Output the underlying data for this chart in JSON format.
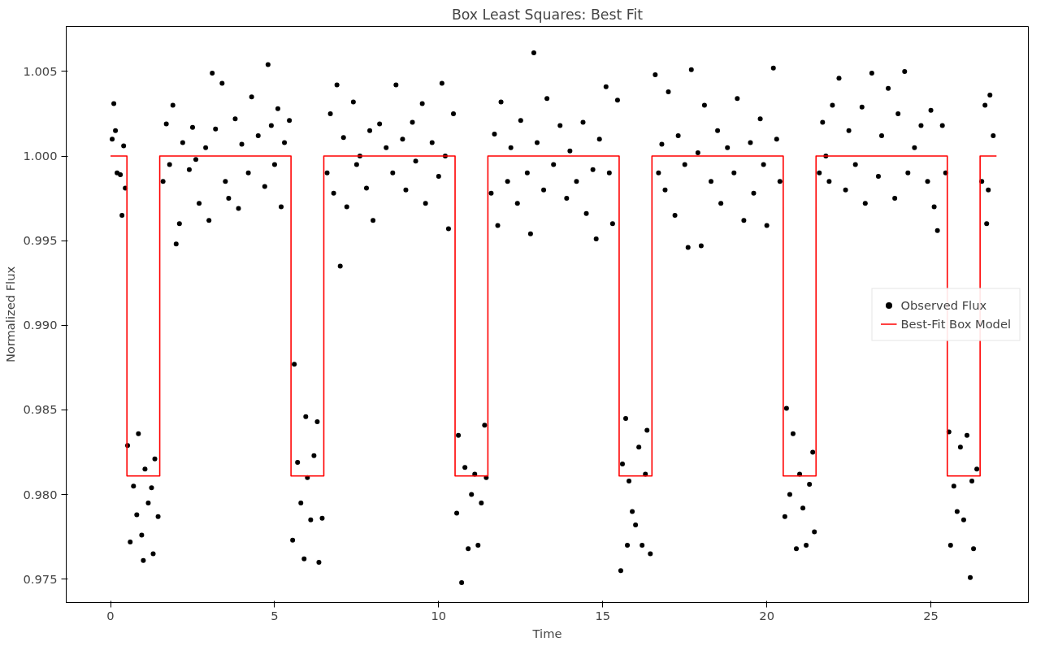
{
  "chart_data": {
    "type": "scatter",
    "title": "Box Least Squares: Best Fit",
    "xlabel": "Time",
    "ylabel": "Normalized Flux",
    "xlim": [
      -1.35,
      27.97
    ],
    "ylim": [
      0.97362,
      1.00766
    ],
    "xticks": [
      0,
      5,
      10,
      15,
      20,
      25
    ],
    "yticks": [
      {
        "value": 0.975,
        "label": "0.975"
      },
      {
        "value": 0.98,
        "label": "0.980"
      },
      {
        "value": 0.985,
        "label": "0.985"
      },
      {
        "value": 0.99,
        "label": "0.990"
      },
      {
        "value": 0.995,
        "label": "0.995"
      },
      {
        "value": 1.0,
        "label": "1.000"
      },
      {
        "value": 1.005,
        "label": "1.005"
      }
    ],
    "grid": false,
    "legend": "right",
    "series": [
      {
        "name": "Observed Flux",
        "color": "#000000",
        "marker": "circle",
        "x": [
          0.05,
          0.1,
          0.15,
          0.2,
          0.3,
          0.35,
          0.4,
          0.45,
          0.52,
          0.6,
          0.7,
          0.8,
          0.85,
          0.95,
          1.0,
          1.05,
          1.15,
          1.25,
          1.3,
          1.35,
          1.45,
          1.6,
          1.7,
          1.8,
          1.9,
          2.0,
          2.1,
          2.2,
          2.4,
          2.5,
          2.6,
          2.7,
          2.9,
          3.0,
          3.1,
          3.2,
          3.4,
          3.5,
          3.6,
          3.8,
          3.9,
          4.0,
          4.2,
          4.3,
          4.5,
          4.7,
          4.8,
          4.9,
          5.0,
          5.1,
          5.2,
          5.3,
          5.45,
          5.55,
          5.6,
          5.7,
          5.8,
          5.9,
          5.95,
          6.0,
          6.1,
          6.2,
          6.3,
          6.35,
          6.45,
          6.6,
          6.7,
          6.8,
          6.9,
          7.0,
          7.1,
          7.2,
          7.4,
          7.5,
          7.6,
          7.8,
          7.9,
          8.0,
          8.2,
          8.4,
          8.6,
          8.7,
          8.9,
          9.0,
          9.2,
          9.3,
          9.5,
          9.6,
          9.8,
          10.0,
          10.1,
          10.2,
          10.3,
          10.45,
          10.55,
          10.6,
          10.7,
          10.8,
          10.9,
          11.0,
          11.1,
          11.2,
          11.3,
          11.4,
          11.45,
          11.6,
          11.7,
          11.8,
          11.9,
          12.1,
          12.2,
          12.4,
          12.5,
          12.7,
          12.8,
          12.9,
          13.0,
          13.2,
          13.3,
          13.5,
          13.7,
          13.9,
          14.0,
          14.2,
          14.4,
          14.5,
          14.7,
          14.8,
          14.9,
          15.1,
          15.2,
          15.3,
          15.45,
          15.55,
          15.6,
          15.7,
          15.75,
          15.8,
          15.9,
          16.0,
          16.1,
          16.2,
          16.3,
          16.35,
          16.45,
          16.6,
          16.7,
          16.8,
          16.9,
          17.0,
          17.2,
          17.3,
          17.5,
          17.6,
          17.7,
          17.9,
          18.0,
          18.1,
          18.3,
          18.5,
          18.6,
          18.8,
          19.0,
          19.1,
          19.3,
          19.5,
          19.6,
          19.8,
          19.9,
          20.0,
          20.2,
          20.3,
          20.4,
          20.55,
          20.6,
          20.7,
          20.8,
          20.9,
          21.0,
          21.1,
          21.2,
          21.3,
          21.4,
          21.45,
          21.6,
          21.7,
          21.8,
          21.9,
          22.0,
          22.2,
          22.4,
          22.5,
          22.7,
          22.9,
          23.0,
          23.2,
          23.4,
          23.5,
          23.7,
          23.9,
          24.0,
          24.2,
          24.3,
          24.5,
          24.7,
          24.9,
          25.0,
          25.1,
          25.2,
          25.35,
          25.45,
          25.55,
          25.6,
          25.7,
          25.8,
          25.9,
          26.0,
          26.1,
          26.2,
          26.25,
          26.3,
          26.4,
          26.55,
          26.65,
          26.7,
          26.75,
          26.8,
          26.9
        ],
        "values": [
          1.001,
          1.0031,
          1.0015,
          0.999,
          0.9989,
          0.9965,
          1.0006,
          0.9981,
          0.9829,
          0.9772,
          0.9805,
          0.9788,
          0.9836,
          0.9776,
          0.9761,
          0.9815,
          0.9795,
          0.9804,
          0.9765,
          0.9821,
          0.9787,
          0.9985,
          1.0019,
          0.9995,
          1.003,
          0.9948,
          0.996,
          1.0008,
          0.9992,
          1.0017,
          0.9998,
          0.9972,
          1.0005,
          0.9962,
          1.0049,
          1.0016,
          1.0043,
          0.9985,
          0.9975,
          1.0022,
          0.9969,
          1.0007,
          0.999,
          1.0035,
          1.0012,
          0.9982,
          1.0054,
          1.0018,
          0.9995,
          1.0028,
          0.997,
          1.0008,
          1.0021,
          0.9773,
          0.9877,
          0.9819,
          0.9795,
          0.9762,
          0.9846,
          0.981,
          0.9785,
          0.9823,
          0.9843,
          0.976,
          0.9786,
          0.999,
          1.0025,
          0.9978,
          1.0042,
          0.9935,
          1.0011,
          0.997,
          1.0032,
          0.9995,
          1.0,
          0.9981,
          1.0015,
          0.9962,
          1.0019,
          1.0005,
          0.999,
          1.0042,
          1.001,
          0.998,
          1.002,
          0.9997,
          1.0031,
          0.9972,
          1.0008,
          0.9988,
          1.0043,
          1.0,
          0.9957,
          1.0025,
          0.9789,
          0.9835,
          0.9748,
          0.9816,
          0.9768,
          0.98,
          0.9812,
          0.977,
          0.9795,
          0.9841,
          0.981,
          0.9978,
          1.0013,
          0.9959,
          1.0032,
          0.9985,
          1.0005,
          0.9972,
          1.0021,
          0.999,
          0.9954,
          1.0061,
          1.0008,
          0.998,
          1.0034,
          0.9995,
          1.0018,
          0.9975,
          1.0003,
          0.9985,
          1.002,
          0.9966,
          0.9992,
          0.9951,
          1.001,
          1.0041,
          0.999,
          0.996,
          1.0033,
          0.9755,
          0.9818,
          0.9845,
          0.977,
          0.9808,
          0.979,
          0.9782,
          0.9828,
          0.977,
          0.9812,
          0.9838,
          0.9765,
          1.0048,
          0.999,
          1.0007,
          0.998,
          1.0038,
          0.9965,
          1.0012,
          0.9995,
          0.9946,
          1.0051,
          1.0002,
          0.9947,
          1.003,
          0.9985,
          1.0015,
          0.9972,
          1.0005,
          0.999,
          1.0034,
          0.9962,
          1.0008,
          0.9978,
          1.0022,
          0.9995,
          0.9959,
          1.0052,
          1.001,
          0.9985,
          0.9787,
          0.9851,
          0.98,
          0.9836,
          0.9768,
          0.9812,
          0.9792,
          0.977,
          0.9806,
          0.9825,
          0.9778,
          0.999,
          1.002,
          1.0,
          0.9985,
          1.003,
          1.0046,
          0.998,
          1.0015,
          0.9995,
          1.0029,
          0.9972,
          1.0049,
          0.9988,
          1.0012,
          1.004,
          0.9975,
          1.0025,
          1.005,
          0.999,
          1.0005,
          1.0018,
          0.9985,
          1.0027,
          0.997,
          0.9956,
          1.0018,
          0.999,
          0.9837,
          0.977,
          0.9805,
          0.979,
          0.9828,
          0.9785,
          0.9835,
          0.9751,
          0.9808,
          0.9768,
          0.9815,
          0.9985,
          1.003,
          0.996,
          0.998,
          1.0036,
          1.0012
        ]
      },
      {
        "name": "Best-Fit Box Model",
        "color": "#ff0000",
        "type": "line",
        "marker": "none",
        "x": [
          0,
          0.5,
          0.5,
          1.5,
          1.5,
          5.5,
          5.5,
          6.5,
          6.5,
          10.5,
          10.5,
          11.5,
          11.5,
          15.5,
          15.5,
          16.5,
          16.5,
          20.5,
          20.5,
          21.5,
          21.5,
          25.5,
          25.5,
          26.5,
          26.5,
          27
        ],
        "values": [
          1.0,
          1.0,
          0.9811,
          0.9811,
          1.0,
          1.0,
          0.9811,
          0.9811,
          1.0,
          1.0,
          0.9811,
          0.9811,
          1.0,
          1.0,
          0.9811,
          0.9811,
          1.0,
          1.0,
          0.9811,
          0.9811,
          1.0,
          1.0,
          0.9811,
          0.9811,
          1.0,
          1.0
        ]
      }
    ]
  }
}
